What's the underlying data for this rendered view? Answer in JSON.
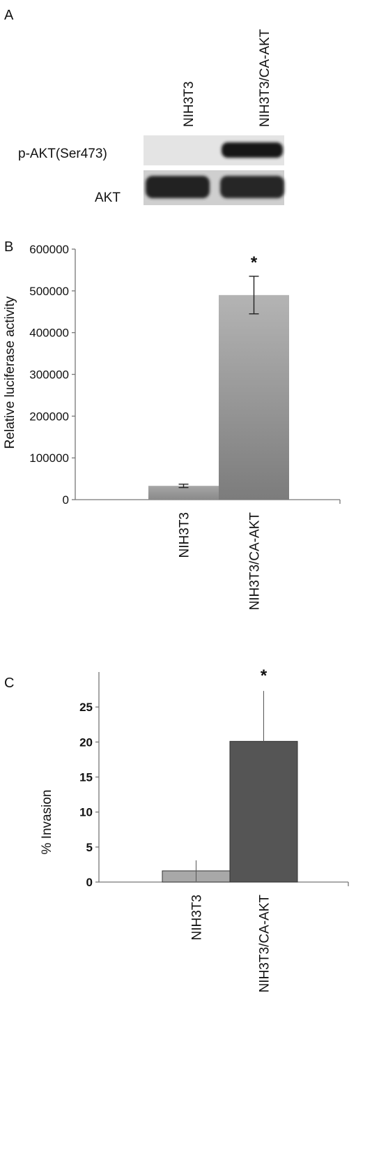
{
  "panels": {
    "a": {
      "letter": "A"
    },
    "b": {
      "letter": "B"
    },
    "c": {
      "letter": "C"
    }
  },
  "blot": {
    "lanes": [
      "NIH3T3",
      "NIH3T3/CA-AKT"
    ],
    "rows": [
      "p-AKT(Ser473)",
      "AKT"
    ]
  },
  "chart_data": [
    {
      "panel": "B",
      "type": "bar",
      "categories": [
        "NIH3T3",
        "NIH3T3/CA-AKT"
      ],
      "values": [
        33000,
        490000
      ],
      "errors": [
        4000,
        45000
      ],
      "annotations": [
        "",
        "*"
      ],
      "ylabel": "Relative luciferase activity",
      "ylim": [
        0,
        600000
      ],
      "yticks": [
        "0",
        "100000",
        "200000",
        "300000",
        "400000",
        "500000",
        "600000"
      ],
      "grid": false,
      "colors": [
        "#9a9a9a",
        "#8f8f8f"
      ]
    },
    {
      "panel": "C",
      "type": "bar",
      "categories": [
        "NIH3T3",
        "NIH3T3/CA-AKT"
      ],
      "values": [
        1.6,
        20.1
      ],
      "errors": [
        1.5,
        7.2
      ],
      "annotations": [
        "",
        "*"
      ],
      "ylabel": "% Invasion",
      "ylim": [
        0,
        30
      ],
      "yticks": [
        "0",
        "5",
        "10",
        "15",
        "20",
        "25"
      ],
      "grid": false,
      "colors": [
        "#a8a8a8",
        "#555555"
      ]
    }
  ]
}
